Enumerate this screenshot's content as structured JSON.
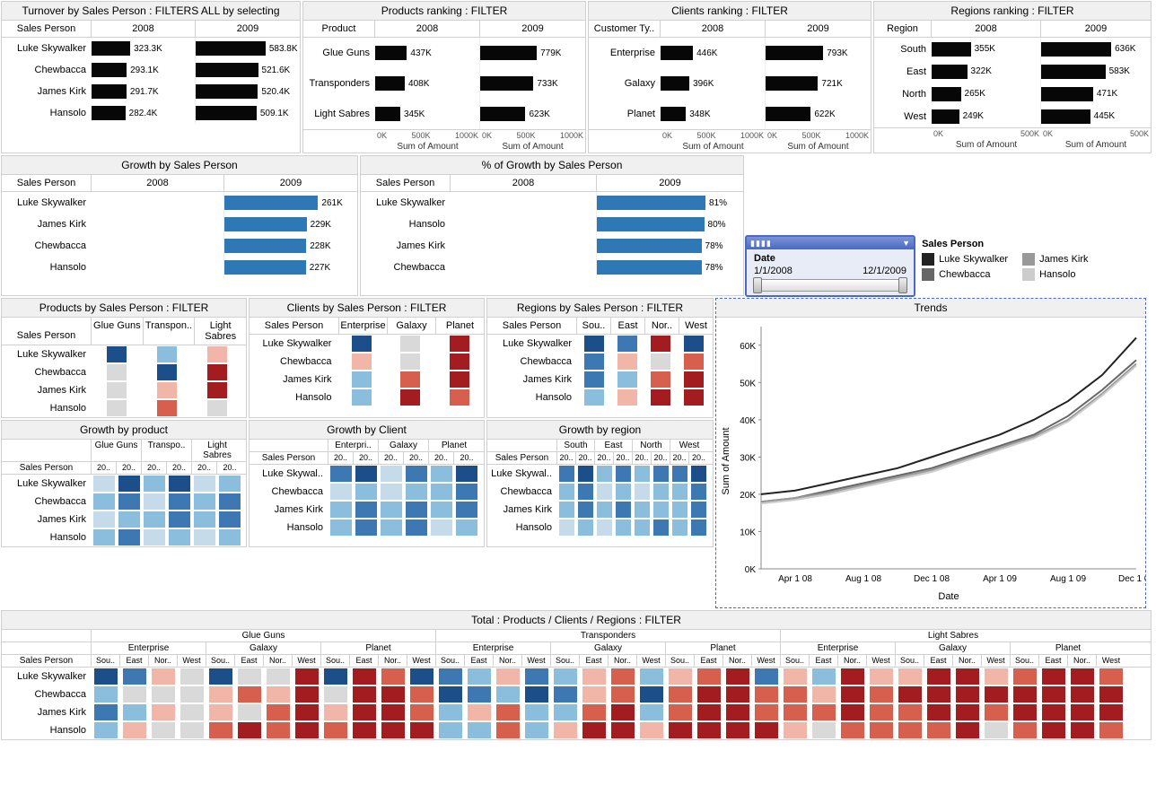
{
  "colors": {
    "black_bar": "#070707",
    "blue_bar": "#2e79b5",
    "grid": "#d0d0d0",
    "panel_bg": "#f0f0f0",
    "heat_blue_d": "#1c4e8a",
    "heat_blue_m": "#3e78b3",
    "heat_blue_l": "#8abedc",
    "heat_blue_vl": "#c5dbea",
    "heat_grey": "#d9d9d9",
    "heat_pink": "#f2b6a8",
    "heat_red_m": "#d6604d",
    "heat_red_d": "#a31c20",
    "line1": "#222222",
    "line2": "#666666",
    "line3": "#999999",
    "line4": "#cccccc"
  },
  "turnover": {
    "title": "Turnover by Sales Person : FILTERS ALL by selecting",
    "row_header": "Sales Person",
    "cols": [
      "2008",
      "2009"
    ],
    "rows": [
      {
        "label": "Luke Skywalker",
        "v2008": 323.3,
        "l2008": "323.3K",
        "v2009": 583.8,
        "l2009": "583.8K"
      },
      {
        "label": "Chewbacca",
        "v2008": 293.1,
        "l2008": "293.1K",
        "v2009": 521.6,
        "l2009": "521.6K"
      },
      {
        "label": "James Kirk",
        "v2008": 291.7,
        "l2008": "291.7K",
        "v2009": 520.4,
        "l2009": "520.4K"
      },
      {
        "label": "Hansolo",
        "v2008": 282.4,
        "l2008": "282.4K",
        "v2009": 509.1,
        "l2009": "509.1K"
      }
    ],
    "max": 600
  },
  "products": {
    "title": "Products ranking : FILTER",
    "row_header": "Product",
    "cols": [
      "2008",
      "2009"
    ],
    "axis_label": "Sum of Amount",
    "ticks": [
      "0K",
      "500K",
      "1000K"
    ],
    "rows": [
      {
        "label": "Glue Guns",
        "v2008": 437,
        "l2008": "437K",
        "v2009": 779,
        "l2009": "779K"
      },
      {
        "label": "Transponders",
        "v2008": 408,
        "l2008": "408K",
        "v2009": 733,
        "l2009": "733K"
      },
      {
        "label": "Light Sabres",
        "v2008": 345,
        "l2008": "345K",
        "v2009": 623,
        "l2009": "623K"
      }
    ],
    "max": 1000
  },
  "clients": {
    "title": "Clients ranking : FILTER",
    "row_header": "Customer Ty..",
    "cols": [
      "2008",
      "2009"
    ],
    "axis_label": "Sum of Amount",
    "ticks": [
      "0K",
      "500K",
      "1000K"
    ],
    "rows": [
      {
        "label": "Enterprise",
        "v2008": 446,
        "l2008": "446K",
        "v2009": 793,
        "l2009": "793K"
      },
      {
        "label": "Galaxy",
        "v2008": 396,
        "l2008": "396K",
        "v2009": 721,
        "l2009": "721K"
      },
      {
        "label": "Planet",
        "v2008": 348,
        "l2008": "348K",
        "v2009": 622,
        "l2009": "622K"
      }
    ],
    "max": 1000
  },
  "regions": {
    "title": "Regions ranking : FILTER",
    "row_header": "Region",
    "cols": [
      "2008",
      "2009"
    ],
    "axis_label": "Sum of Amount",
    "ticks": [
      "0K",
      "500K"
    ],
    "rows": [
      {
        "label": "South",
        "v2008": 355,
        "l2008": "355K",
        "v2009": 636,
        "l2009": "636K"
      },
      {
        "label": "East",
        "v2008": 322,
        "l2008": "322K",
        "v2009": 583,
        "l2009": "583K"
      },
      {
        "label": "North",
        "v2008": 265,
        "l2008": "265K",
        "v2009": 471,
        "l2009": "471K"
      },
      {
        "label": "West",
        "v2008": 249,
        "l2008": "249K",
        "v2009": 445,
        "l2009": "445K"
      }
    ],
    "max": 700
  },
  "growth": {
    "title": "Growth by Sales Person",
    "row_header": "Sales Person",
    "cols": [
      "2008",
      "2009"
    ],
    "rows": [
      {
        "label": "Luke Skywalker",
        "v": 261,
        "l": "261K"
      },
      {
        "label": "James Kirk",
        "v": 229,
        "l": "229K"
      },
      {
        "label": "Chewbacca",
        "v": 228,
        "l": "228K"
      },
      {
        "label": "Hansolo",
        "v": 227,
        "l": "227K"
      }
    ],
    "max": 280
  },
  "growth_pct": {
    "title": "% of Growth by Sales Person",
    "row_header": "Sales Person",
    "cols": [
      "2008",
      "2009"
    ],
    "rows": [
      {
        "label": "Luke Skywalker",
        "v": 81,
        "l": "81%"
      },
      {
        "label": "Hansolo",
        "v": 80,
        "l": "80%"
      },
      {
        "label": "James Kirk",
        "v": 78,
        "l": "78%"
      },
      {
        "label": "Chewbacca",
        "v": 78,
        "l": "78%"
      }
    ],
    "max": 85
  },
  "date_filter": {
    "label": "Date",
    "from": "1/1/2008",
    "to": "12/1/2009"
  },
  "legend": {
    "title": "Sales Person",
    "items": [
      {
        "name": "Luke Skywalker",
        "color": "#222222"
      },
      {
        "name": "James Kirk",
        "color": "#999999"
      },
      {
        "name": "Chewbacca",
        "color": "#666666"
      },
      {
        "name": "Hansolo",
        "color": "#cccccc"
      }
    ]
  },
  "heat_products": {
    "title": "Products by Sales Person : FILTER",
    "row_header": "Sales Person",
    "cols": [
      "Glue Guns",
      "Transpon..",
      "Light Sabres"
    ],
    "rows": [
      "Luke Skywalker",
      "Chewbacca",
      "James Kirk",
      "Hansolo"
    ],
    "cells": [
      [
        "heat_blue_d",
        "heat_blue_l",
        "heat_pink"
      ],
      [
        "heat_grey",
        "heat_blue_d",
        "heat_red_d"
      ],
      [
        "heat_grey",
        "heat_pink",
        "heat_red_d"
      ],
      [
        "heat_grey",
        "heat_red_m",
        "heat_grey"
      ]
    ]
  },
  "heat_clients": {
    "title": "Clients by Sales Person : FILTER",
    "row_header": "Sales Person",
    "cols": [
      "Enterprise",
      "Galaxy",
      "Planet"
    ],
    "rows": [
      "Luke Skywalker",
      "Chewbacca",
      "James Kirk",
      "Hansolo"
    ],
    "cells": [
      [
        "heat_blue_d",
        "heat_grey",
        "heat_red_d"
      ],
      [
        "heat_pink",
        "heat_grey",
        "heat_red_d"
      ],
      [
        "heat_blue_l",
        "heat_red_m",
        "heat_red_d"
      ],
      [
        "heat_blue_l",
        "heat_red_d",
        "heat_red_m"
      ]
    ]
  },
  "heat_regions": {
    "title": "Regions by Sales Person : FILTER",
    "row_header": "Sales Person",
    "cols": [
      "Sou..",
      "East",
      "Nor..",
      "West"
    ],
    "rows": [
      "Luke Skywalker",
      "Chewbacca",
      "James Kirk",
      "Hansolo"
    ],
    "cells": [
      [
        "heat_blue_d",
        "heat_blue_m",
        "heat_red_d",
        "heat_blue_d"
      ],
      [
        "heat_blue_m",
        "heat_pink",
        "heat_grey",
        "heat_red_m"
      ],
      [
        "heat_blue_m",
        "heat_blue_l",
        "heat_red_m",
        "heat_red_d"
      ],
      [
        "heat_blue_l",
        "heat_pink",
        "heat_red_d",
        "heat_red_d"
      ]
    ]
  },
  "growth_product": {
    "title": "Growth by product",
    "row_header": "Sales Person",
    "groups": [
      "Glue Guns",
      "Transpo..",
      "Light Sabres"
    ],
    "sub": [
      "20..",
      "20.."
    ],
    "rows": [
      "Luke Skywalker",
      "Chewbacca",
      "James Kirk",
      "Hansolo"
    ],
    "cells": [
      [
        "heat_blue_vl",
        "heat_blue_d",
        "heat_blue_l",
        "heat_blue_d",
        "heat_blue_vl",
        "heat_blue_l"
      ],
      [
        "heat_blue_l",
        "heat_blue_m",
        "heat_blue_vl",
        "heat_blue_m",
        "heat_blue_l",
        "heat_blue_m"
      ],
      [
        "heat_blue_vl",
        "heat_blue_l",
        "heat_blue_l",
        "heat_blue_m",
        "heat_blue_l",
        "heat_blue_m"
      ],
      [
        "heat_blue_l",
        "heat_blue_m",
        "heat_blue_vl",
        "heat_blue_l",
        "heat_blue_vl",
        "heat_blue_l"
      ]
    ]
  },
  "growth_client": {
    "title": "Growth by Client",
    "row_header": "Sales Person",
    "groups": [
      "Enterpri..",
      "Galaxy",
      "Planet"
    ],
    "sub": [
      "20..",
      "20.."
    ],
    "rows": [
      "Luke Skywal..",
      "Chewbacca",
      "James Kirk",
      "Hansolo"
    ],
    "cells": [
      [
        "heat_blue_m",
        "heat_blue_d",
        "heat_blue_vl",
        "heat_blue_m",
        "heat_blue_l",
        "heat_blue_d"
      ],
      [
        "heat_blue_vl",
        "heat_blue_l",
        "heat_blue_vl",
        "heat_blue_l",
        "heat_blue_l",
        "heat_blue_m"
      ],
      [
        "heat_blue_l",
        "heat_blue_m",
        "heat_blue_l",
        "heat_blue_m",
        "heat_blue_l",
        "heat_blue_m"
      ],
      [
        "heat_blue_l",
        "heat_blue_m",
        "heat_blue_l",
        "heat_blue_m",
        "heat_blue_vl",
        "heat_blue_l"
      ]
    ]
  },
  "growth_region": {
    "title": "Growth by region",
    "row_header": "Sales Person",
    "groups": [
      "South",
      "East",
      "North",
      "West"
    ],
    "sub": [
      "20..",
      "20.."
    ],
    "rows": [
      "Luke Skywal..",
      "Chewbacca",
      "James Kirk",
      "Hansolo"
    ],
    "cells": [
      [
        "heat_blue_m",
        "heat_blue_d",
        "heat_blue_l",
        "heat_blue_m",
        "heat_blue_l",
        "heat_blue_m",
        "heat_blue_m",
        "heat_blue_d"
      ],
      [
        "heat_blue_l",
        "heat_blue_m",
        "heat_blue_vl",
        "heat_blue_l",
        "heat_blue_vl",
        "heat_blue_l",
        "heat_blue_l",
        "heat_blue_m"
      ],
      [
        "heat_blue_l",
        "heat_blue_m",
        "heat_blue_l",
        "heat_blue_m",
        "heat_blue_l",
        "heat_blue_l",
        "heat_blue_l",
        "heat_blue_m"
      ],
      [
        "heat_blue_vl",
        "heat_blue_l",
        "heat_blue_vl",
        "heat_blue_l",
        "heat_blue_l",
        "heat_blue_m",
        "heat_blue_l",
        "heat_blue_m"
      ]
    ]
  },
  "trends": {
    "title": "Trends",
    "y_label": "Sum of Amount",
    "x_label": "Date",
    "y_ticks": [
      "0K",
      "10K",
      "20K",
      "30K",
      "40K",
      "50K",
      "60K"
    ],
    "x_ticks": [
      "Apr 1 08",
      "Aug 1 08",
      "Dec 1 08",
      "Apr 1 09",
      "Aug 1 09",
      "Dec 1 09"
    ],
    "series": [
      {
        "color": "#222222",
        "points": [
          [
            0,
            20
          ],
          [
            1,
            21
          ],
          [
            2,
            23
          ],
          [
            3,
            25
          ],
          [
            4,
            27
          ],
          [
            5,
            30
          ],
          [
            6,
            33
          ],
          [
            7,
            36
          ],
          [
            8,
            40
          ],
          [
            9,
            45
          ],
          [
            10,
            52
          ],
          [
            11,
            62
          ]
        ]
      },
      {
        "color": "#666666",
        "points": [
          [
            0,
            18
          ],
          [
            1,
            19
          ],
          [
            2,
            21
          ],
          [
            3,
            23
          ],
          [
            4,
            25
          ],
          [
            5,
            27
          ],
          [
            6,
            30
          ],
          [
            7,
            33
          ],
          [
            8,
            36
          ],
          [
            9,
            41
          ],
          [
            10,
            48
          ],
          [
            11,
            56
          ]
        ]
      },
      {
        "color": "#999999",
        "points": [
          [
            0,
            18
          ],
          [
            1,
            19
          ],
          [
            2,
            20.5
          ],
          [
            3,
            22.5
          ],
          [
            4,
            24.5
          ],
          [
            5,
            26.5
          ],
          [
            6,
            29.5
          ],
          [
            7,
            32.5
          ],
          [
            8,
            35.5
          ],
          [
            9,
            40
          ],
          [
            10,
            47
          ],
          [
            11,
            55
          ]
        ]
      },
      {
        "color": "#cccccc",
        "points": [
          [
            0,
            17.5
          ],
          [
            1,
            18.5
          ],
          [
            2,
            20
          ],
          [
            3,
            22
          ],
          [
            4,
            24
          ],
          [
            5,
            26
          ],
          [
            6,
            29
          ],
          [
            7,
            32
          ],
          [
            8,
            35
          ],
          [
            9,
            39.5
          ],
          [
            10,
            46.5
          ],
          [
            11,
            54.5
          ]
        ]
      }
    ],
    "y_max": 65,
    "x_max": 11
  },
  "total": {
    "title": "Total : Products / Clients / Regions : FILTER",
    "row_header": "Sales Person",
    "products": [
      "Glue Guns",
      "Transponders",
      "Light Sabres"
    ],
    "clients": [
      "Enterprise",
      "Galaxy",
      "Planet"
    ],
    "regions": [
      "Sou..",
      "East",
      "Nor..",
      "West"
    ],
    "rows": [
      "Luke Skywalker",
      "Chewbacca",
      "James Kirk",
      "Hansolo"
    ],
    "cells": [
      [
        "heat_blue_d",
        "heat_blue_m",
        "heat_pink",
        "heat_grey",
        "heat_blue_d",
        "heat_grey",
        "heat_grey",
        "heat_red_d",
        "heat_blue_d",
        "heat_red_d",
        "heat_red_m",
        "heat_blue_d",
        "heat_blue_m",
        "heat_blue_l",
        "heat_pink",
        "heat_blue_m",
        "heat_blue_l",
        "heat_pink",
        "heat_red_m",
        "heat_blue_l",
        "heat_pink",
        "heat_red_m",
        "heat_red_d",
        "heat_blue_m",
        "heat_pink",
        "heat_blue_l",
        "heat_red_d",
        "heat_pink",
        "heat_pink",
        "heat_red_d",
        "heat_red_d",
        "heat_pink",
        "heat_red_m",
        "heat_red_d",
        "heat_red_d",
        "heat_red_m"
      ],
      [
        "heat_blue_l",
        "heat_grey",
        "heat_grey",
        "heat_grey",
        "heat_pink",
        "heat_red_m",
        "heat_pink",
        "heat_red_d",
        "heat_grey",
        "heat_red_d",
        "heat_red_d",
        "heat_red_m",
        "heat_blue_d",
        "heat_blue_m",
        "heat_blue_l",
        "heat_blue_d",
        "heat_blue_m",
        "heat_pink",
        "heat_red_m",
        "heat_blue_d",
        "heat_red_m",
        "heat_red_d",
        "heat_red_d",
        "heat_red_m",
        "heat_red_m",
        "heat_pink",
        "heat_red_d",
        "heat_red_m",
        "heat_red_d",
        "heat_red_d",
        "heat_red_d",
        "heat_red_d",
        "heat_red_d",
        "heat_red_d",
        "heat_red_d",
        "heat_red_d"
      ],
      [
        "heat_blue_m",
        "heat_blue_l",
        "heat_pink",
        "heat_grey",
        "heat_pink",
        "heat_grey",
        "heat_red_m",
        "heat_red_d",
        "heat_pink",
        "heat_red_d",
        "heat_red_d",
        "heat_red_m",
        "heat_blue_l",
        "heat_pink",
        "heat_red_m",
        "heat_blue_l",
        "heat_blue_l",
        "heat_red_m",
        "heat_red_d",
        "heat_blue_l",
        "heat_red_m",
        "heat_red_d",
        "heat_red_d",
        "heat_red_m",
        "heat_red_m",
        "heat_red_m",
        "heat_red_d",
        "heat_red_m",
        "heat_red_m",
        "heat_red_d",
        "heat_red_d",
        "heat_red_m",
        "heat_red_d",
        "heat_red_d",
        "heat_red_d",
        "heat_red_d"
      ],
      [
        "heat_blue_l",
        "heat_pink",
        "heat_grey",
        "heat_grey",
        "heat_red_m",
        "heat_red_d",
        "heat_red_m",
        "heat_red_d",
        "heat_red_m",
        "heat_red_d",
        "heat_red_d",
        "heat_red_d",
        "heat_blue_l",
        "heat_blue_l",
        "heat_red_m",
        "heat_blue_l",
        "heat_pink",
        "heat_red_d",
        "heat_red_d",
        "heat_pink",
        "heat_red_d",
        "heat_red_d",
        "heat_red_d",
        "heat_red_d",
        "heat_pink",
        "heat_grey",
        "heat_red_m",
        "heat_red_m",
        "heat_red_m",
        "heat_red_m",
        "heat_red_d",
        "heat_grey",
        "heat_red_m",
        "heat_red_d",
        "heat_red_d",
        "heat_red_m"
      ]
    ]
  }
}
